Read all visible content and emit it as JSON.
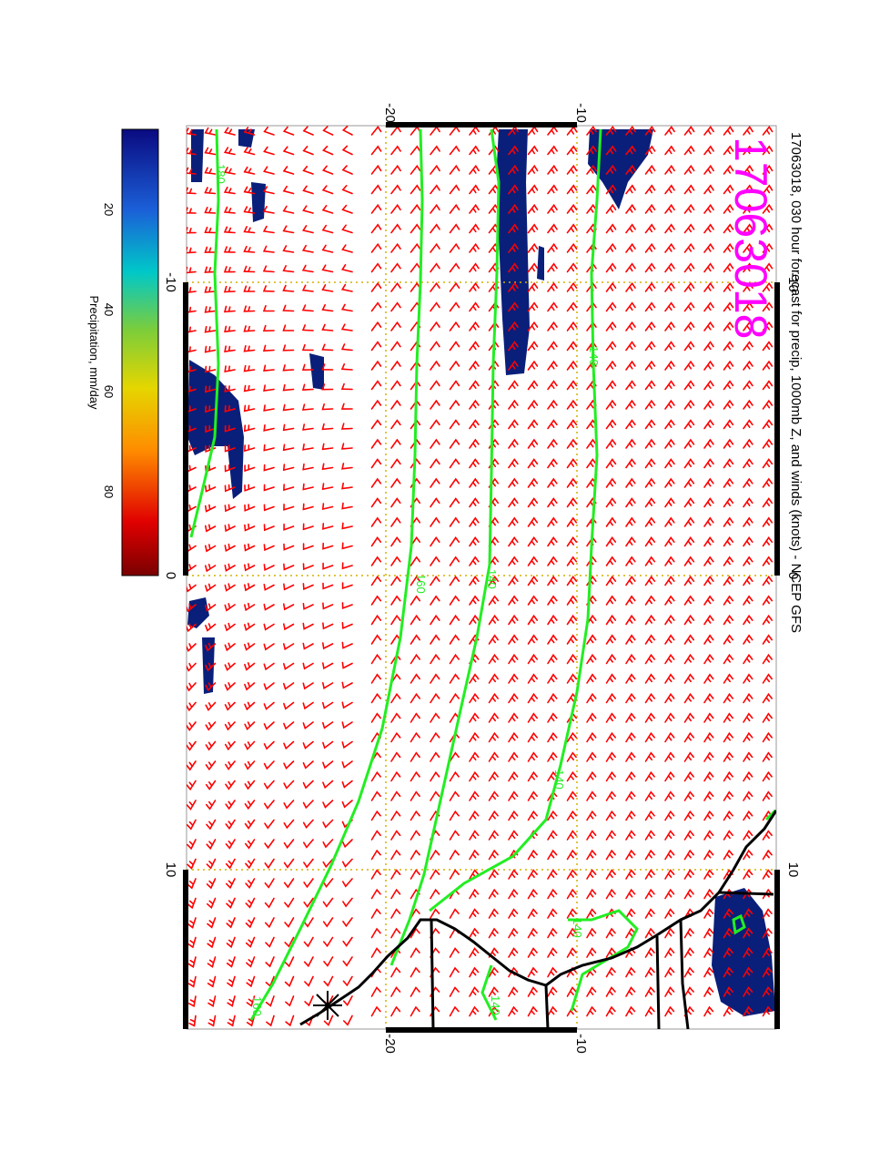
{
  "title": "17063018, 030 hour forecast for precip, 1000mb Z, and winds (knots) - NCEP GFS",
  "stamp": "17063018",
  "colorbar": {
    "label": "Precipitation, mm/day",
    "ticks": [
      "20",
      "40",
      "60",
      "80"
    ]
  },
  "axes": {
    "lon_top": [
      "-10",
      "0",
      "10"
    ],
    "lon_bottom": [
      "-10",
      "0",
      "10"
    ],
    "lat_top": [
      "-20",
      "-10"
    ],
    "lat_bottom": [
      "-20",
      "-10"
    ]
  },
  "contour_labels": [
    "180",
    "160",
    "140",
    "140",
    "160",
    "140",
    "140",
    "140"
  ],
  "colors": {
    "wind_barbs": "#ff0000",
    "contours": "#22ee22",
    "precip": "#0a1f7a",
    "stamp": "#ff00ff",
    "grid": "#d4b000",
    "coast": "#000000"
  }
}
